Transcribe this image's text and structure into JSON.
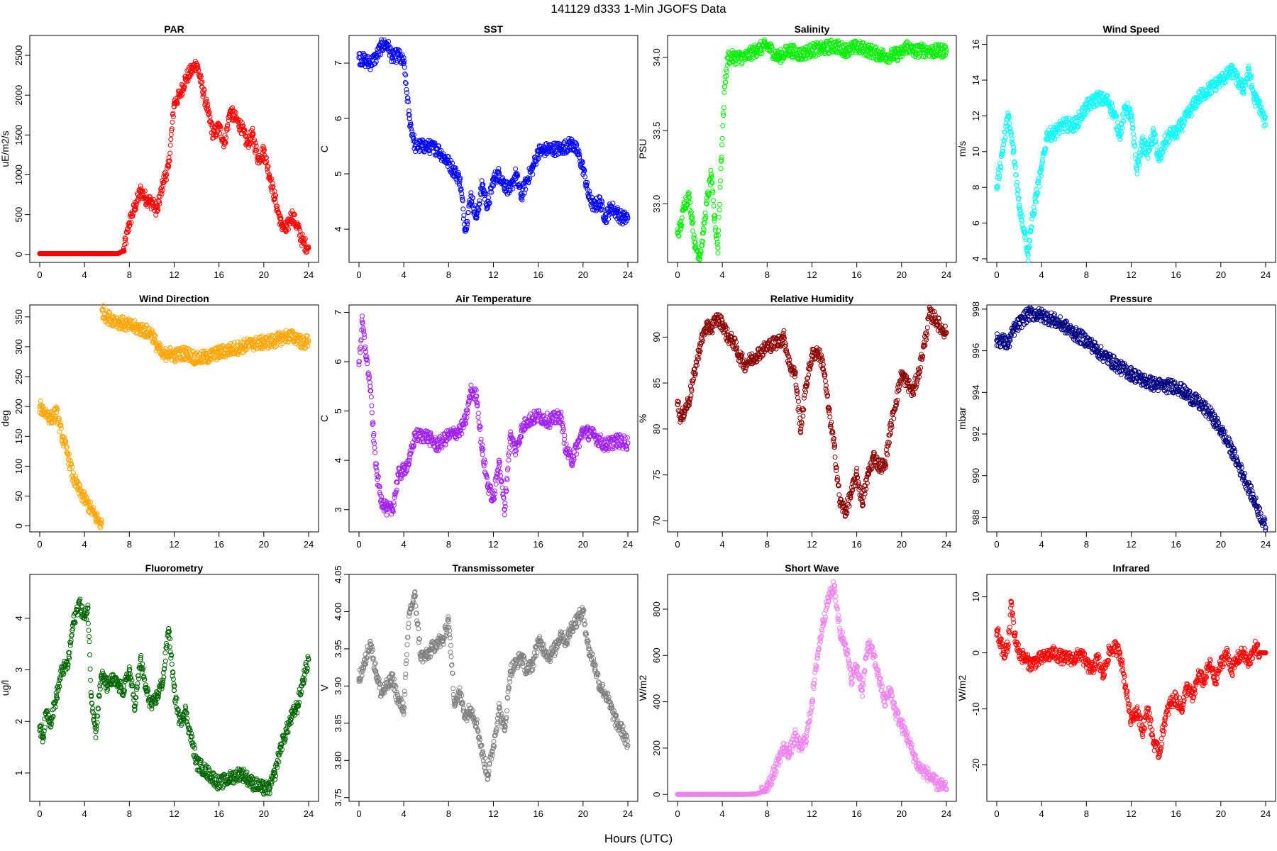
{
  "figure": {
    "title": "141129   d333   1-Min  JGOFS Data",
    "xlabel": "Hours (UTC)"
  },
  "chart_data": [
    {
      "type": "scatter",
      "title": "PAR",
      "ylabel": "uE/m2/s",
      "color": "#ff0000",
      "xlim": [
        0,
        24
      ],
      "ylim": [
        -100,
        2750
      ],
      "xticks": [
        0,
        4,
        8,
        12,
        16,
        20,
        24
      ],
      "yticks": [
        0,
        500,
        1000,
        1500,
        2000,
        2500
      ],
      "x": [
        0,
        1,
        2,
        3,
        4,
        5,
        6,
        7,
        7.5,
        8,
        8.5,
        9,
        9.5,
        10,
        10.5,
        11,
        11.5,
        12,
        12.5,
        13,
        13.5,
        14,
        14.5,
        15,
        15.5,
        16,
        16.5,
        17,
        17.5,
        18,
        18.5,
        19,
        19.5,
        20,
        20.5,
        21,
        21.5,
        22,
        22.5,
        23,
        23.5,
        24
      ],
      "y": [
        10,
        10,
        10,
        10,
        10,
        10,
        10,
        10,
        50,
        400,
        600,
        800,
        700,
        650,
        550,
        900,
        1100,
        1900,
        2000,
        2200,
        2300,
        2400,
        2100,
        1800,
        1500,
        1600,
        1400,
        1800,
        1700,
        1600,
        1400,
        1500,
        1200,
        1300,
        1000,
        700,
        400,
        300,
        500,
        350,
        150,
        80
      ]
    },
    {
      "type": "scatter",
      "title": "SST",
      "ylabel": "C",
      "color": "#0000ff",
      "xlim": [
        0,
        24
      ],
      "ylim": [
        3.4,
        7.5
      ],
      "xticks": [
        0,
        4,
        8,
        12,
        16,
        20,
        24
      ],
      "yticks": [
        4,
        5,
        6,
        7
      ],
      "x": [
        0,
        0.5,
        1,
        1.5,
        2,
        2.5,
        3,
        3.5,
        4,
        4.5,
        5,
        6,
        7,
        8,
        9,
        9.5,
        10,
        10.5,
        11,
        11.5,
        12,
        12.5,
        13,
        13.5,
        14,
        14.5,
        15,
        15.5,
        16,
        17,
        18,
        19,
        19.5,
        20,
        20.5,
        21,
        21.5,
        22,
        22.5,
        23,
        23.5,
        24
      ],
      "y": [
        7.1,
        7.05,
        7.0,
        7.1,
        7.3,
        7.35,
        7.1,
        7.15,
        7.0,
        6.0,
        5.5,
        5.5,
        5.45,
        5.2,
        4.9,
        4.0,
        4.6,
        4.2,
        4.8,
        4.4,
        4.9,
        5.0,
        4.8,
        4.7,
        5.0,
        4.6,
        4.9,
        5.1,
        5.4,
        5.45,
        5.45,
        5.55,
        5.4,
        5.1,
        4.6,
        4.4,
        4.5,
        4.2,
        4.4,
        4.3,
        4.2,
        4.2
      ]
    },
    {
      "type": "scatter",
      "title": "Salinity",
      "ylabel": "PSU",
      "color": "#00ee00",
      "xlim": [
        0,
        24
      ],
      "ylim": [
        32.6,
        34.15
      ],
      "xticks": [
        0,
        4,
        8,
        12,
        16,
        20,
        24
      ],
      "yticks": [
        33.0,
        33.5,
        34.0
      ],
      "x": [
        0,
        0.3,
        0.6,
        1,
        1.3,
        1.6,
        2,
        2.3,
        2.6,
        3,
        3.3,
        3.6,
        3.9,
        4.2,
        4.5,
        5,
        6,
        7,
        8,
        9,
        10,
        11,
        12,
        13,
        14,
        15,
        16,
        17,
        18,
        19,
        20,
        20.5,
        21,
        22,
        23,
        24
      ],
      "y": [
        32.8,
        32.85,
        33.0,
        33.05,
        32.9,
        32.7,
        32.65,
        32.8,
        33.0,
        33.2,
        32.9,
        32.7,
        33.3,
        33.8,
        34.0,
        34.0,
        34.0,
        34.05,
        34.08,
        34.0,
        34.05,
        34.02,
        34.05,
        34.06,
        34.08,
        34.05,
        34.07,
        34.05,
        34.02,
        34.01,
        34.03,
        34.08,
        34.04,
        34.05,
        34.04,
        34.05
      ]
    },
    {
      "type": "scatter",
      "title": "Wind Speed",
      "ylabel": "m/s",
      "color": "#00ffff",
      "xlim": [
        0,
        24
      ],
      "ylim": [
        3.8,
        16.5
      ],
      "xticks": [
        0,
        4,
        8,
        12,
        16,
        20,
        24
      ],
      "yticks": [
        4,
        6,
        8,
        10,
        12,
        14,
        16
      ],
      "x": [
        0,
        0.5,
        1,
        1.5,
        2,
        2.5,
        2.8,
        3,
        3.5,
        4,
        4.5,
        5,
        6,
        7,
        8,
        9,
        10,
        10.5,
        11,
        11.5,
        12,
        12.5,
        13,
        13.5,
        14,
        14.5,
        15,
        15.5,
        16,
        17,
        18,
        19,
        20,
        21,
        22,
        22.5,
        23,
        23.5,
        24
      ],
      "y": [
        8,
        10,
        12,
        10,
        7,
        5.5,
        4.2,
        5.5,
        7.5,
        9,
        11,
        11,
        11.5,
        11.5,
        12.5,
        13,
        12.8,
        12,
        11,
        12.5,
        12,
        9,
        10.5,
        10,
        11,
        9.5,
        10.5,
        11,
        11,
        12,
        13,
        13.5,
        14,
        14.5,
        13.5,
        14.5,
        13,
        12.5,
        11.5
      ]
    },
    {
      "type": "scatter",
      "title": "Wind Direction",
      "ylabel": "deg",
      "color": "#ffa500",
      "xlim": [
        0,
        24
      ],
      "ylim": [
        -10,
        370
      ],
      "xticks": [
        0,
        4,
        8,
        12,
        16,
        20,
        24
      ],
      "yticks": [
        0,
        50,
        100,
        150,
        200,
        250,
        300,
        350
      ],
      "x": [
        0,
        0.5,
        1,
        1.5,
        2,
        2.5,
        3,
        3.5,
        4,
        4.5,
        5,
        5.5,
        5.6,
        6,
        7,
        8,
        9,
        10,
        10.5,
        11,
        11.5,
        12,
        13,
        14,
        15,
        16,
        17,
        18,
        19,
        20,
        21,
        22,
        23,
        23.5,
        24
      ],
      "y": [
        200,
        190,
        180,
        190,
        150,
        120,
        80,
        60,
        45,
        30,
        15,
        3,
        360,
        350,
        342,
        335,
        330,
        322,
        300,
        285,
        290,
        285,
        290,
        280,
        283,
        290,
        295,
        300,
        305,
        307,
        310,
        318,
        315,
        305,
        310
      ]
    },
    {
      "type": "scatter",
      "title": "Air Temperature",
      "ylabel": "C",
      "color": "#a020f0",
      "xlim": [
        0,
        24
      ],
      "ylim": [
        2.55,
        7.15
      ],
      "xticks": [
        0,
        4,
        8,
        12,
        16,
        20,
        24
      ],
      "yticks": [
        3,
        4,
        5,
        6,
        7
      ],
      "x": [
        0,
        0.3,
        0.6,
        1,
        1.3,
        1.6,
        2,
        2.5,
        3,
        3.5,
        4,
        4.5,
        5,
        6,
        7,
        8,
        9,
        9.5,
        10,
        10.5,
        11,
        11.5,
        12,
        12.5,
        13,
        13.5,
        14,
        14.5,
        15,
        16,
        17,
        18,
        18.5,
        19,
        20,
        21,
        22,
        23,
        24
      ],
      "y": [
        6.0,
        6.8,
        6.2,
        5.5,
        4.5,
        3.7,
        3.2,
        3.0,
        3.0,
        3.7,
        3.8,
        4.0,
        4.5,
        4.5,
        4.3,
        4.5,
        4.6,
        4.8,
        5.4,
        5.3,
        4.2,
        3.5,
        3.2,
        4.0,
        3.0,
        4.5,
        4.2,
        4.6,
        4.8,
        4.9,
        4.8,
        4.9,
        4.2,
        4.0,
        4.6,
        4.5,
        4.3,
        4.4,
        4.35
      ]
    },
    {
      "type": "scatter",
      "title": "Relative Humidity",
      "ylabel": "%",
      "color": "#8b0000",
      "xlim": [
        0,
        24
      ],
      "ylim": [
        68.8,
        93.5
      ],
      "xticks": [
        0,
        4,
        8,
        12,
        16,
        20,
        24
      ],
      "yticks": [
        70,
        75,
        80,
        85,
        90
      ],
      "x": [
        0,
        0.3,
        0.6,
        1,
        1.5,
        2,
        2.5,
        3,
        3.5,
        4,
        4.5,
        5,
        5.5,
        6,
        7,
        8,
        9,
        9.5,
        10,
        10.5,
        11,
        11.5,
        12,
        12.5,
        13,
        13.5,
        14,
        14.5,
        15,
        15.5,
        16,
        16.5,
        17,
        17.5,
        18,
        18.5,
        19,
        19.5,
        20,
        20.5,
        21,
        21.5,
        22,
        22.5,
        23,
        23.5,
        24
      ],
      "y": [
        83,
        81,
        82,
        83,
        86,
        89,
        91,
        91,
        92,
        91.5,
        90,
        89.5,
        88,
        87,
        88,
        89,
        89.5,
        90,
        87,
        86,
        80,
        85,
        88,
        88.5,
        87,
        82,
        78,
        72,
        71,
        73,
        75,
        72,
        75,
        77,
        76,
        76,
        80,
        83,
        86,
        85,
        84,
        86,
        89,
        92.5,
        92,
        91,
        90.5
      ]
    },
    {
      "type": "scatter",
      "title": "Pressure",
      "ylabel": "mbar",
      "color": "#000080",
      "xlim": [
        0,
        24
      ],
      "ylim": [
        987.3,
        998.2
      ],
      "xticks": [
        0,
        4,
        8,
        12,
        16,
        20,
        24
      ],
      "yticks": [
        988,
        990,
        992,
        994,
        996,
        998
      ],
      "x": [
        0,
        0.5,
        1,
        1.5,
        2,
        2.5,
        3,
        4,
        5,
        6,
        7,
        8,
        9,
        10,
        11,
        12,
        13,
        14,
        15,
        16,
        17,
        18,
        19,
        20,
        21,
        22,
        23,
        24
      ],
      "y": [
        996.5,
        996.5,
        996.3,
        997.0,
        997.3,
        997.6,
        997.8,
        997.7,
        997.5,
        997.2,
        996.8,
        996.5,
        996.0,
        995.6,
        995.2,
        994.9,
        994.6,
        994.4,
        994.3,
        994.3,
        993.9,
        993.5,
        993.0,
        992.2,
        991.2,
        990.0,
        988.8,
        987.5
      ]
    },
    {
      "type": "scatter",
      "title": "Fluorometry",
      "ylabel": "ug/l",
      "color": "#006400",
      "xlim": [
        0,
        24
      ],
      "ylim": [
        0.45,
        4.85
      ],
      "xticks": [
        0,
        4,
        8,
        12,
        16,
        20,
        24
      ],
      "yticks": [
        1,
        2,
        3,
        4
      ],
      "x": [
        0,
        0.3,
        0.6,
        1,
        1.5,
        2,
        2.5,
        3,
        3.5,
        4,
        4.3,
        4.6,
        5,
        5.5,
        6,
        6.5,
        7,
        7.5,
        8,
        8.5,
        9,
        9.5,
        10,
        10.5,
        11,
        11.5,
        12,
        12.5,
        13,
        13.5,
        14,
        14.5,
        15,
        16,
        17,
        18,
        19,
        20,
        20.5,
        21,
        21.5,
        22,
        22.5,
        23,
        23.5,
        24
      ],
      "y": [
        1.9,
        1.7,
        2.2,
        2.0,
        2.5,
        3.0,
        3.1,
        3.9,
        4.3,
        4.0,
        4.2,
        2.5,
        1.8,
        2.9,
        2.7,
        2.8,
        2.7,
        2.6,
        3.0,
        2.3,
        3.2,
        2.6,
        2.3,
        2.5,
        2.8,
        3.8,
        2.6,
        2.0,
        2.2,
        1.7,
        1.2,
        1.1,
        1.0,
        0.8,
        0.9,
        1.0,
        0.8,
        0.7,
        0.7,
        1.0,
        1.5,
        1.8,
        2.1,
        2.3,
        2.8,
        3.2
      ]
    },
    {
      "type": "scatter",
      "title": "Transmissometer",
      "ylabel": "V",
      "color": "#808080",
      "xlim": [
        0,
        24
      ],
      "ylim": [
        3.745,
        4.05
      ],
      "xticks": [
        0,
        4,
        8,
        12,
        16,
        20,
        24
      ],
      "yticks": [
        3.75,
        3.8,
        3.85,
        3.9,
        3.95,
        4.0,
        4.05
      ],
      "x": [
        0,
        0.5,
        1,
        1.5,
        2,
        2.5,
        3,
        3.5,
        4,
        4.5,
        5,
        5.5,
        6,
        6.5,
        7,
        7.5,
        8,
        8.5,
        9,
        9.5,
        10,
        10.5,
        11,
        11.5,
        12,
        12.5,
        13,
        13.5,
        14,
        14.5,
        15,
        15.5,
        16,
        16.5,
        17,
        17.5,
        18,
        18.5,
        19,
        19.5,
        20,
        20.5,
        21,
        21.5,
        22,
        22.5,
        23,
        23.5,
        24
      ],
      "y": [
        3.91,
        3.93,
        3.96,
        3.92,
        3.89,
        3.9,
        3.91,
        3.88,
        3.87,
        4.0,
        4.02,
        3.94,
        3.94,
        3.95,
        3.96,
        3.96,
        3.99,
        3.88,
        3.89,
        3.86,
        3.87,
        3.85,
        3.81,
        3.78,
        3.82,
        3.87,
        3.84,
        3.92,
        3.93,
        3.94,
        3.92,
        3.93,
        3.96,
        3.95,
        3.94,
        3.95,
        3.97,
        3.96,
        3.98,
        3.99,
        4.0,
        3.95,
        3.93,
        3.9,
        3.89,
        3.87,
        3.85,
        3.84,
        3.82
      ]
    },
    {
      "type": "scatter",
      "title": "Short Wave",
      "ylabel": "W/m2",
      "color": "#ee82ee",
      "xlim": [
        0,
        24
      ],
      "ylim": [
        -30,
        950
      ],
      "xticks": [
        0,
        4,
        8,
        12,
        16,
        20,
        24
      ],
      "yticks": [
        0,
        200,
        400,
        600,
        800
      ],
      "x": [
        0,
        1,
        2,
        3,
        4,
        5,
        6,
        7,
        7.5,
        8,
        8.5,
        9,
        9.5,
        10,
        10.5,
        11,
        11.5,
        12,
        12.5,
        13,
        13.5,
        14,
        14.5,
        15,
        15.5,
        16,
        16.5,
        17,
        17.5,
        18,
        18.5,
        19,
        19.5,
        20,
        20.5,
        21,
        21.5,
        22,
        22.5,
        23,
        23.5,
        24
      ],
      "y": [
        0,
        0,
        0,
        0,
        0,
        0,
        0,
        2,
        10,
        40,
        80,
        150,
        200,
        180,
        250,
        200,
        250,
        400,
        600,
        750,
        850,
        900,
        700,
        650,
        500,
        550,
        450,
        650,
        600,
        500,
        400,
        450,
        350,
        300,
        250,
        180,
        120,
        100,
        80,
        50,
        40,
        20
      ]
    },
    {
      "type": "scatter",
      "title": "Infrared",
      "ylabel": "W/m2",
      "color": "#ff0000",
      "xlim": [
        0,
        24
      ],
      "ylim": [
        -26.5,
        14
      ],
      "xticks": [
        0,
        4,
        8,
        12,
        16,
        20,
        24
      ],
      "yticks": [
        -20,
        -10,
        0,
        10
      ],
      "x": [
        0,
        0.3,
        0.6,
        1,
        1.3,
        1.6,
        2,
        2.5,
        3,
        4,
        5,
        6,
        7,
        7.5,
        8,
        8.5,
        9,
        9.5,
        10,
        10.5,
        11,
        11.5,
        12,
        12.5,
        13,
        13.5,
        14,
        14.5,
        15,
        15.5,
        16,
        16.5,
        17,
        17.5,
        18,
        18.5,
        19,
        19.5,
        20,
        20.5,
        21,
        21.5,
        22,
        22.5,
        23,
        23.5,
        24
      ],
      "y": [
        4,
        2,
        0,
        1,
        9,
        3,
        0,
        -1,
        -2,
        -1,
        0,
        -1,
        -1,
        0,
        -2,
        -3,
        -1,
        -4,
        0,
        1,
        0,
        -6,
        -12,
        -10,
        -14,
        -10,
        -16,
        -18,
        -12,
        -9,
        -8,
        -10,
        -6,
        -8,
        -4,
        -5,
        -2,
        -5,
        -2,
        0,
        -3,
        -1,
        0,
        -2,
        1,
        0,
        0
      ]
    }
  ]
}
